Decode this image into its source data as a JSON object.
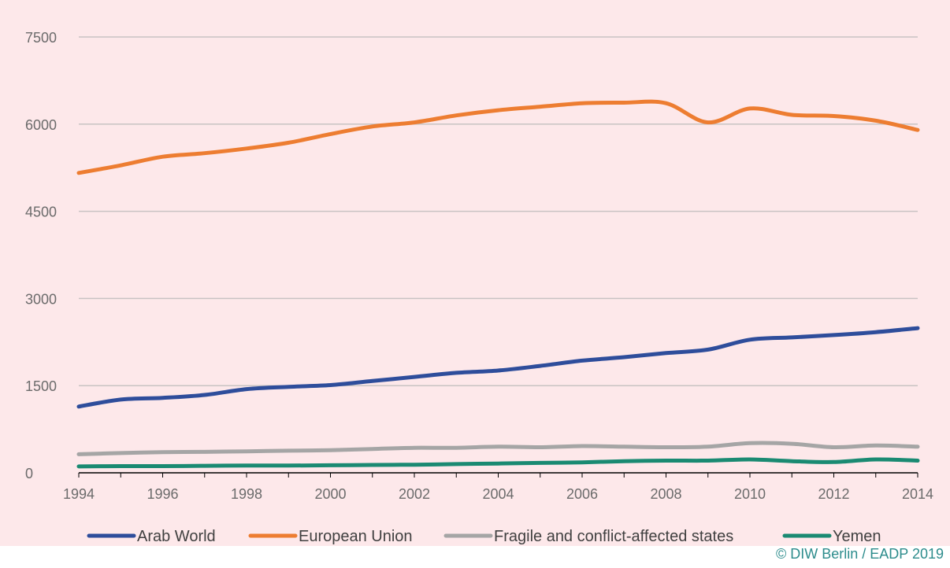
{
  "chart_data": {
    "type": "line",
    "title": "",
    "xlabel": "",
    "ylabel": "",
    "x": [
      1994,
      1995,
      1996,
      1997,
      1998,
      1999,
      2000,
      2001,
      2002,
      2003,
      2004,
      2005,
      2006,
      2007,
      2008,
      2009,
      2010,
      2011,
      2012,
      2013,
      2014
    ],
    "xticks": [
      "1994",
      "1996",
      "1998",
      "2000",
      "2002",
      "2004",
      "2006",
      "2008",
      "2010",
      "2012",
      "2014"
    ],
    "yticks": [
      "0",
      "1500",
      "3000",
      "4500",
      "6000",
      "7500"
    ],
    "ylim": [
      0,
      7500
    ],
    "xlim": [
      1994,
      2014
    ],
    "grid": true,
    "background": "#fde8ea",
    "legend_position": "bottom",
    "series": [
      {
        "name": "Arab World",
        "color": "#2e4d9b",
        "values": [
          1140,
          1260,
          1290,
          1340,
          1440,
          1480,
          1510,
          1580,
          1650,
          1720,
          1760,
          1840,
          1930,
          1990,
          2060,
          2120,
          2290,
          2330,
          2370,
          2420,
          2490
        ]
      },
      {
        "name": "European Union",
        "color": "#ed7d31",
        "values": [
          5160,
          5290,
          5440,
          5500,
          5580,
          5680,
          5830,
          5960,
          6030,
          6150,
          6240,
          6300,
          6360,
          6370,
          6360,
          6030,
          6270,
          6160,
          6140,
          6060,
          5900
        ]
      },
      {
        "name": "Fragile and conflict-affected states",
        "color": "#a5a5a5",
        "values": [
          320,
          340,
          355,
          360,
          370,
          380,
          390,
          410,
          430,
          430,
          450,
          440,
          460,
          450,
          440,
          450,
          510,
          500,
          440,
          470,
          450
        ]
      },
      {
        "name": "Yemen",
        "color": "#1a8a72",
        "values": [
          110,
          115,
          115,
          120,
          125,
          125,
          130,
          135,
          140,
          150,
          160,
          170,
          180,
          200,
          210,
          210,
          230,
          200,
          185,
          230,
          210
        ]
      }
    ]
  },
  "credit": "© DIW Berlin / EADP 2019"
}
